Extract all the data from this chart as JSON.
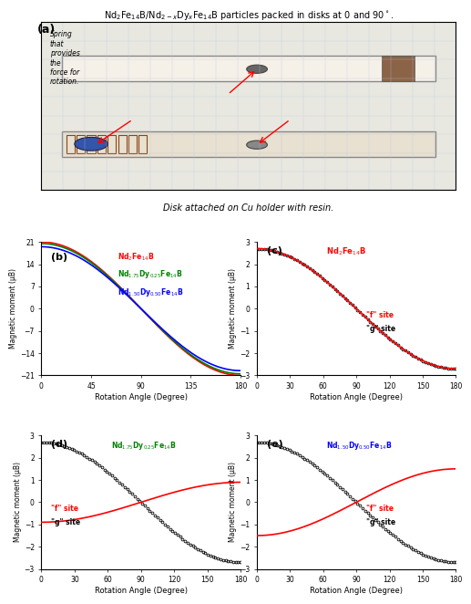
{
  "title_a": "Nd₂Fe₁₄B/Nd₂₋xDyₓFe₁₄B particles packed in disks at 0 and 90°.",
  "caption_a": "Disk attached on Cu holder with resin.",
  "spring_label": "Spring\nthat\nprovides\nthe\nforce for\nrotation.",
  "label_b": "Nd₂Fe₁₄B",
  "label_b_green": "Nd₁.₇₅Dy₀.₂₅Fe₁₄B",
  "label_b_blue": "Nd₁.₅₀Dy₀.₅₀Fe₁₄B",
  "label_c": "Nd₂Fe₁₄B",
  "label_d": "Nd₁.₇₅Dy₀.₂₅Fe₁₄B",
  "label_e": "Nd₁.₅₀Dy₀.₅₀Fe₁₄B",
  "xlabel": "Rotation Angle (Degree)",
  "ylabel": "Magnetic moment (μB)",
  "b_ylim": [
    -21,
    21
  ],
  "b_yticks": [
    -21,
    -14,
    -7,
    0,
    7,
    14,
    21
  ],
  "b_xticks": [
    0,
    45,
    90,
    135,
    180
  ],
  "cde_ylim": [
    -3,
    3
  ],
  "cde_yticks": [
    -3,
    -2,
    -1,
    0,
    1,
    2,
    3
  ],
  "cde_xticks": [
    0,
    30,
    60,
    90,
    120,
    150,
    180
  ],
  "panel_labels": [
    "(a)",
    "(b)",
    "(c)",
    "(d)",
    "(e)"
  ],
  "photo_bg": "#d0ccc0",
  "f_site_label": "\"f\" site",
  "g_site_label": "\"g\" site",
  "f_site_color": "#cc0000",
  "g_site_color": "#000000",
  "red_color": "#cc0000",
  "green_color": "#00aa00",
  "blue_color": "#0000cc"
}
